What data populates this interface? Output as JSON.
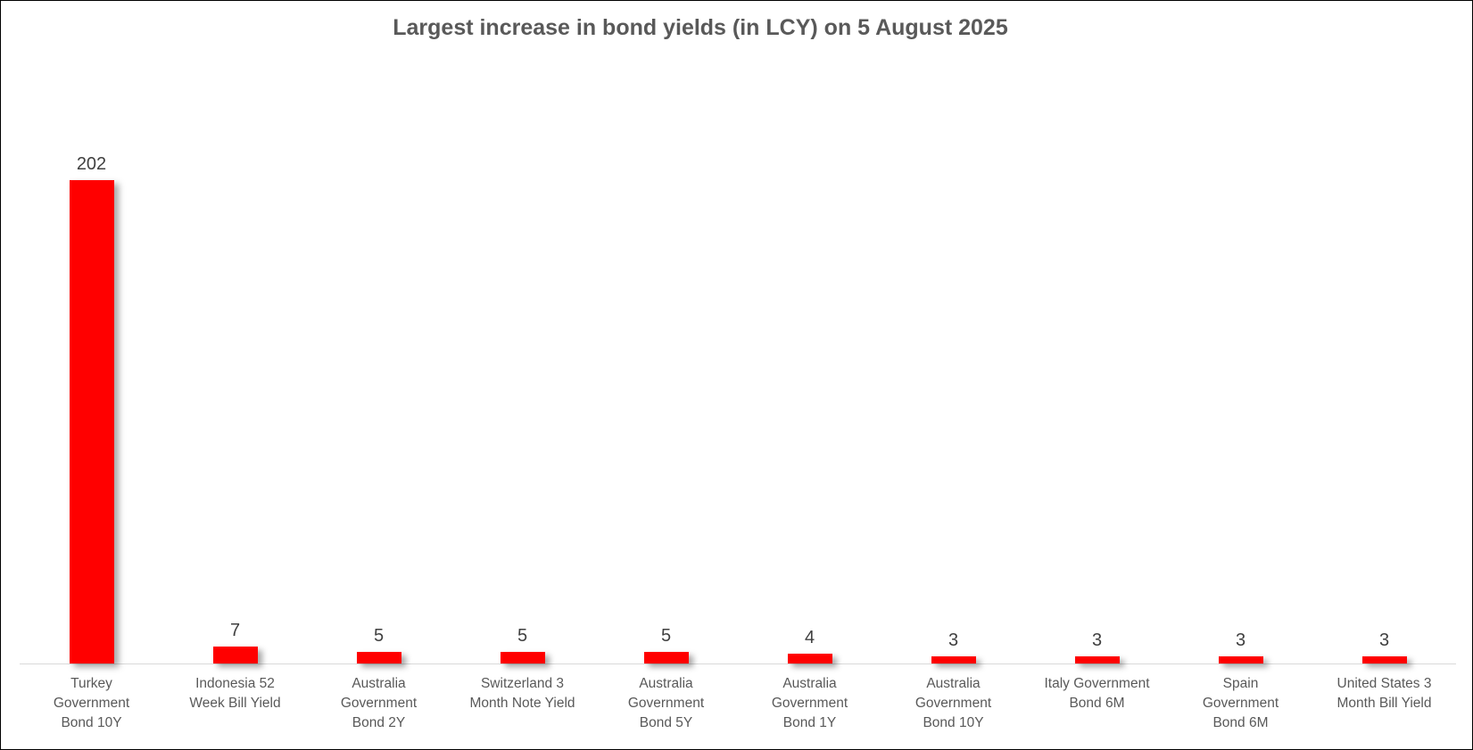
{
  "chart_data": {
    "type": "bar",
    "title": "Largest increase in bond yields (in LCY) on 5 August 2025",
    "categories": [
      "Turkey Government Bond 10Y",
      "Indonesia 52 Week Bill Yield",
      "Australia Government Bond 2Y",
      "Switzerland 3 Month Note Yield",
      "Australia Government Bond 5Y",
      "Australia Government Bond 1Y",
      "Australia Government Bond 10Y",
      "Italy Government Bond 6M",
      "Spain Government Bond 6M",
      "United States 3 Month Bill Yield"
    ],
    "category_label_lines": [
      [
        "Turkey",
        "Government",
        "Bond 10Y"
      ],
      [
        "Indonesia 52",
        "Week Bill Yield"
      ],
      [
        "Australia",
        "Government",
        "Bond 2Y"
      ],
      [
        "Switzerland 3",
        "Month Note Yield"
      ],
      [
        "Australia",
        "Government",
        "Bond 5Y"
      ],
      [
        "Australia",
        "Government",
        "Bond 1Y"
      ],
      [
        "Australia",
        "Government",
        "Bond 10Y"
      ],
      [
        "Italy Government",
        "Bond 6M"
      ],
      [
        "Spain",
        "Government",
        "Bond 6M"
      ],
      [
        "United States 3",
        "Month Bill Yield"
      ]
    ],
    "values": [
      202,
      7,
      5,
      5,
      5,
      4,
      3,
      3,
      3,
      3
    ],
    "data_labels": [
      "202",
      "7",
      "5",
      "5",
      "5",
      "4",
      "3",
      "3",
      "3",
      "3"
    ],
    "xlabel": "",
    "ylabel": "",
    "ylim": [
      0,
      210
    ],
    "grid": false,
    "legend": false,
    "data_labels_position": "above bars",
    "bar_color": "#FF0000",
    "title_color": "#595959",
    "value_label_color": "#404040",
    "category_label_color": "#595959",
    "axis_line_color": "#D9D9D9",
    "background_color": "#FFFFFF",
    "border_color": "#000000"
  }
}
